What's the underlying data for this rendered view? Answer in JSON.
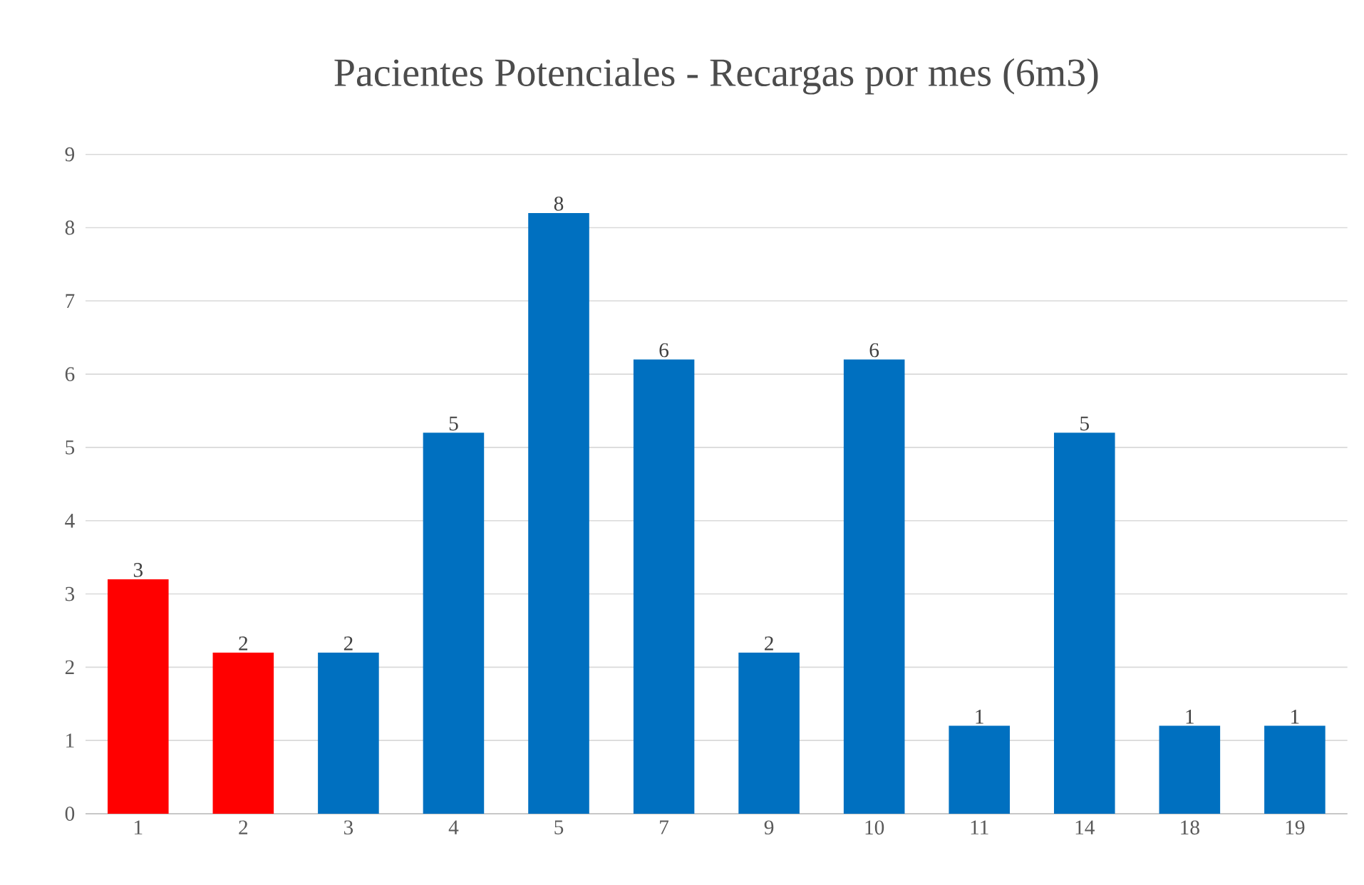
{
  "chart_data": {
    "type": "bar",
    "title": "Pacientes Potenciales - Recargas por mes (6m3)",
    "categories": [
      "1",
      "2",
      "3",
      "4",
      "5",
      "7",
      "9",
      "10",
      "11",
      "14",
      "18",
      "19"
    ],
    "values": [
      3.2,
      2.2,
      2.2,
      5.2,
      8.2,
      6.2,
      2.2,
      6.2,
      1.2,
      5.2,
      1.2,
      1.2
    ],
    "value_labels": [
      "3",
      "2",
      "2",
      "5",
      "8",
      "6",
      "2",
      "6",
      "1",
      "5",
      "1",
      "1"
    ],
    "colors": [
      "#ff0000",
      "#ff0000",
      "#0070c0",
      "#0070c0",
      "#0070c0",
      "#0070c0",
      "#0070c0",
      "#0070c0",
      "#0070c0",
      "#0070c0",
      "#0070c0",
      "#0070c0"
    ],
    "ylim": [
      0,
      9
    ],
    "yticks": [
      0,
      1,
      2,
      3,
      4,
      5,
      6,
      7,
      8,
      9
    ],
    "grid": "y"
  }
}
